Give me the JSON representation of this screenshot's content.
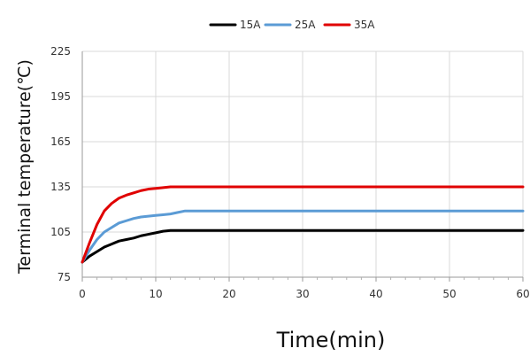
{
  "chart_data": {
    "type": "line",
    "title": "",
    "xlabel": "Time(min)",
    "ylabel": "Terminal temperature(℃)",
    "xlim": [
      0,
      60
    ],
    "ylim": [
      75,
      225
    ],
    "x_ticks": [
      0,
      10,
      20,
      30,
      40,
      50,
      60
    ],
    "y_ticks": [
      75,
      105,
      135,
      165,
      195,
      225
    ],
    "grid": {
      "x": true,
      "y": true
    },
    "legend_position": "top-center",
    "series": [
      {
        "name": "15A",
        "color": "#000000",
        "points": [
          [
            0,
            85
          ],
          [
            1,
            89
          ],
          [
            2,
            92
          ],
          [
            3,
            95
          ],
          [
            4,
            97
          ],
          [
            5,
            99
          ],
          [
            6,
            100
          ],
          [
            7,
            101
          ],
          [
            8,
            102.5
          ],
          [
            9,
            103.5
          ],
          [
            10,
            104.5
          ],
          [
            11,
            105.5
          ],
          [
            12,
            106
          ],
          [
            15,
            106
          ],
          [
            20,
            106
          ],
          [
            30,
            106
          ],
          [
            40,
            106
          ],
          [
            50,
            106
          ],
          [
            60,
            106
          ]
        ]
      },
      {
        "name": "25A",
        "color": "#5b9bd5",
        "points": [
          [
            0,
            85
          ],
          [
            1,
            93
          ],
          [
            2,
            100
          ],
          [
            3,
            105
          ],
          [
            4,
            108
          ],
          [
            5,
            111
          ],
          [
            6,
            112.5
          ],
          [
            7,
            114
          ],
          [
            8,
            115
          ],
          [
            9,
            115.5
          ],
          [
            10,
            116
          ],
          [
            11,
            116.5
          ],
          [
            12,
            117
          ],
          [
            13,
            118
          ],
          [
            14,
            119
          ],
          [
            20,
            119
          ],
          [
            30,
            119
          ],
          [
            40,
            119
          ],
          [
            50,
            119
          ],
          [
            60,
            119
          ]
        ]
      },
      {
        "name": "35A",
        "color": "#e00000",
        "points": [
          [
            0,
            85
          ],
          [
            1,
            98
          ],
          [
            2,
            110
          ],
          [
            3,
            119
          ],
          [
            4,
            124
          ],
          [
            5,
            127.5
          ],
          [
            6,
            129.5
          ],
          [
            7,
            131
          ],
          [
            8,
            132.5
          ],
          [
            9,
            133.5
          ],
          [
            10,
            134
          ],
          [
            11,
            134.5
          ],
          [
            12,
            135
          ],
          [
            20,
            135
          ],
          [
            30,
            135
          ],
          [
            40,
            135
          ],
          [
            50,
            135
          ],
          [
            60,
            135
          ]
        ]
      }
    ]
  }
}
